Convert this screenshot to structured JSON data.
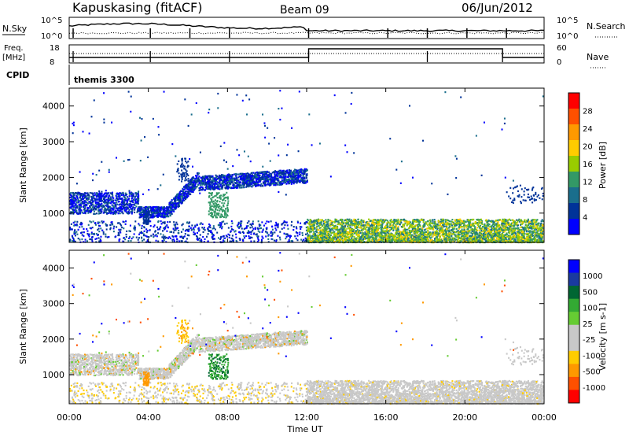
{
  "header": {
    "station": "Kapuskasing (fitACF)",
    "beam": "Beam 09",
    "date": "06/Jun/2012"
  },
  "panels": {
    "nsky": {
      "left_label": "N.Sky",
      "right_label": "N.Search",
      "left_ticks": [
        "10^5",
        "10^0"
      ],
      "right_ticks": [
        "10^5",
        "10^0"
      ]
    },
    "freq": {
      "left_label": "Freq.",
      "left_unit": "[MHz]",
      "right_label": "Nave",
      "left_ticks": [
        "18",
        "8"
      ],
      "right_ticks": [
        "60",
        "0"
      ]
    },
    "cpid": {
      "label": "CPID",
      "value": "themis 3300"
    }
  },
  "colorbars": {
    "power": {
      "label": "Power [dB]",
      "ticks": [
        "28",
        "24",
        "20",
        "16",
        "12",
        "8",
        "4"
      ],
      "colors": [
        "#ff0000",
        "#ff5000",
        "#ff9900",
        "#ffcc00",
        "#99cc00",
        "#339966",
        "#1a6e8c",
        "#003399",
        "#0000ff"
      ]
    },
    "velocity": {
      "label": "Velocity",
      "unit": "[m s-1]",
      "ticks": [
        "1000",
        "500",
        "100",
        "25",
        "-25",
        "-100",
        "-500",
        "-1000"
      ],
      "colors": [
        "#0000ff",
        "#1a3aa0",
        "#006633",
        "#33aa33",
        "#66cc33",
        "#c8c8c8",
        "#c8c8c8",
        "#ffcc00",
        "#ff9900",
        "#ff5000",
        "#ff0000"
      ]
    }
  },
  "chart_data": [
    {
      "type": "heatmap",
      "title": "Power",
      "xlabel": "Time UT",
      "ylabel": "Slant Range [km]",
      "x_ticks": [
        "00:00",
        "04:00",
        "08:00",
        "12:00",
        "16:00",
        "20:00",
        "00:00"
      ],
      "y_ticks": [
        "1000",
        "2000",
        "3000",
        "4000"
      ],
      "xlim": [
        0,
        24
      ],
      "ylim": [
        180,
        4500
      ],
      "colorbar": "Power [dB]",
      "clim": [
        0,
        30
      ]
    },
    {
      "type": "heatmap",
      "title": "Velocity",
      "xlabel": "Time UT",
      "ylabel": "Slant Range [km]",
      "x_ticks": [
        "00:00",
        "04:00",
        "08:00",
        "12:00",
        "16:00",
        "20:00",
        "00:00"
      ],
      "y_ticks": [
        "1000",
        "2000",
        "3000",
        "4000"
      ],
      "xlim": [
        0,
        24
      ],
      "ylim": [
        180,
        4500
      ],
      "colorbar": "Velocity [m s-1]",
      "clim": [
        -1000,
        1000
      ]
    }
  ]
}
